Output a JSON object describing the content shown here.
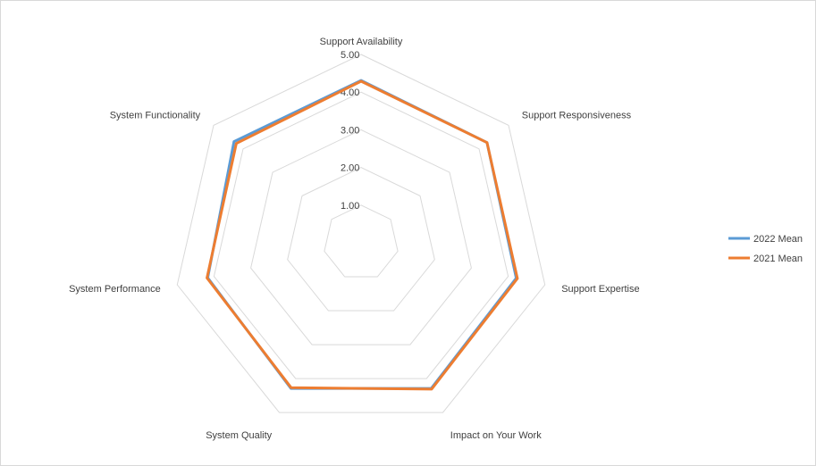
{
  "chart_data": {
    "type": "radar",
    "categories": [
      "Support Availability",
      "Support Responsiveness",
      "Support Expertise",
      "Impact on Your Work",
      "System Quality",
      "System Performance",
      "System Functionality"
    ],
    "rlim": [
      0,
      5
    ],
    "ticks": [
      "1.00",
      "2.00",
      "3.00",
      "4.00",
      "5.00"
    ],
    "grid": true,
    "legend_position": "right",
    "series": [
      {
        "name": "2022 Mean",
        "color": "#5b9bd5",
        "values": [
          4.31,
          4.27,
          4.22,
          4.29,
          4.29,
          4.17,
          4.31
        ]
      },
      {
        "name": "2021 Mean",
        "color": "#ed7d31",
        "values": [
          4.29,
          4.27,
          4.25,
          4.31,
          4.27,
          4.19,
          4.23
        ]
      }
    ]
  }
}
